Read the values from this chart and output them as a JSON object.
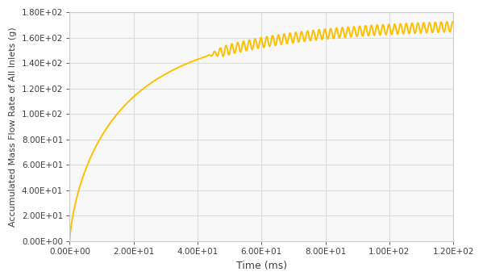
{
  "title": "",
  "xlabel": "Time (ms)",
  "ylabel": "Accumulated Mass Flow Rate of All Inlets (g)",
  "xlim": [
    0,
    120
  ],
  "ylim": [
    0,
    180
  ],
  "xticks": [
    0,
    20,
    40,
    60,
    80,
    100,
    120
  ],
  "yticks": [
    0,
    20,
    40,
    60,
    80,
    100,
    120,
    140,
    160,
    180
  ],
  "line_color": "#FFC000",
  "line_width": 1.4,
  "bg_color": "#FFFFFF",
  "plot_bg_color": "#F8F8F8",
  "grid_color": "#DDDDDD",
  "oscillation_start_t": 43,
  "oscillation_amplitude": 4.0,
  "oscillation_freq_per_unit": 0.55,
  "trend_scale": 172,
  "trend_tau": 18,
  "trend_power": 0.72
}
